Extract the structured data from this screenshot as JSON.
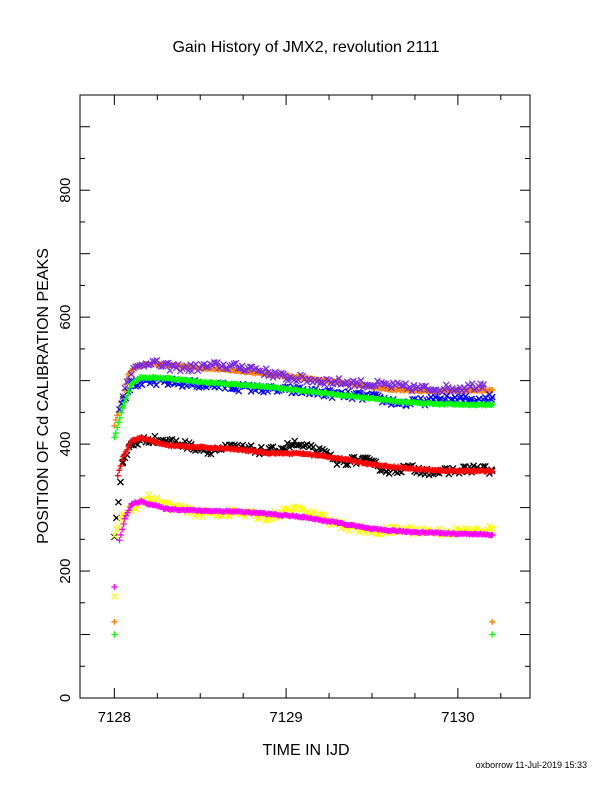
{
  "chart_data": {
    "type": "scatter",
    "title": "Gain History of JMX2, revolution 2111",
    "xlabel": "TIME IN IJD",
    "ylabel": "POSITION OF Cd CALIBRATION PEAKS",
    "xlim": [
      7127.8,
      7130.42
    ],
    "ylim": [
      0,
      950
    ],
    "x_ticks": [
      7128,
      7129,
      7130
    ],
    "y_ticks": [
      0,
      200,
      400,
      600,
      800
    ],
    "x_tick_labels": [
      "7128",
      "7129",
      "7130"
    ],
    "y_tick_labels": [
      "0",
      "200",
      "400",
      "600",
      "800"
    ],
    "grid": false,
    "footer": "oxborrow 11-Jul-2019 15:33",
    "series": [
      {
        "color": "#ff8000",
        "marker": "plus",
        "points": [
          [
            7128.0,
            430
          ],
          [
            7128.0,
            120
          ],
          [
            7130.2,
            120
          ],
          [
            7128.05,
            475
          ],
          [
            7128.08,
            510
          ],
          [
            7128.12,
            522
          ],
          [
            7128.2,
            526
          ],
          [
            7128.35,
            524
          ],
          [
            7128.5,
            520
          ],
          [
            7128.7,
            516
          ],
          [
            7128.9,
            510
          ],
          [
            7129.1,
            504
          ],
          [
            7129.3,
            498
          ],
          [
            7129.5,
            490
          ],
          [
            7129.6,
            486
          ],
          [
            7129.8,
            484
          ],
          [
            7130.0,
            484
          ],
          [
            7130.2,
            485
          ]
        ]
      },
      {
        "color": "#7a2be0",
        "marker": "cross",
        "points": [
          [
            7128.05,
            480
          ],
          [
            7128.1,
            515
          ],
          [
            7128.2,
            530
          ],
          [
            7128.3,
            522
          ],
          [
            7128.45,
            520
          ],
          [
            7128.6,
            524
          ],
          [
            7128.8,
            520
          ],
          [
            7128.9,
            512
          ],
          [
            7129.0,
            505
          ],
          [
            7129.2,
            500
          ],
          [
            7129.4,
            496
          ],
          [
            7129.6,
            492
          ],
          [
            7129.8,
            487
          ],
          [
            7130.0,
            488
          ],
          [
            7130.15,
            494
          ]
        ]
      },
      {
        "color": "#0000ff",
        "marker": "cross",
        "points": [
          [
            7128.03,
            460
          ],
          [
            7128.1,
            495
          ],
          [
            7128.3,
            498
          ],
          [
            7128.5,
            494
          ],
          [
            7128.7,
            490
          ],
          [
            7128.9,
            486
          ],
          [
            7129.1,
            484
          ],
          [
            7129.3,
            478
          ],
          [
            7129.5,
            474
          ],
          [
            7129.6,
            468
          ],
          [
            7129.7,
            464
          ],
          [
            7129.9,
            470
          ],
          [
            7130.1,
            470
          ],
          [
            7130.2,
            474
          ]
        ]
      },
      {
        "color": "#00ff00",
        "marker": "plus",
        "points": [
          [
            7128.0,
            410
          ],
          [
            7128.0,
            100
          ],
          [
            7130.2,
            100
          ],
          [
            7128.05,
            460
          ],
          [
            7128.1,
            496
          ],
          [
            7128.15,
            505
          ],
          [
            7128.3,
            504
          ],
          [
            7128.5,
            498
          ],
          [
            7128.7,
            494
          ],
          [
            7128.9,
            490
          ],
          [
            7129.1,
            484
          ],
          [
            7129.3,
            478
          ],
          [
            7129.5,
            472
          ],
          [
            7129.7,
            466
          ],
          [
            7129.9,
            463
          ],
          [
            7130.1,
            462
          ],
          [
            7130.2,
            462
          ]
        ]
      },
      {
        "color": "#000000",
        "marker": "cross",
        "points": [
          [
            7128.0,
            275
          ],
          [
            7128.0,
            258
          ],
          [
            7128.05,
            370
          ],
          [
            7128.1,
            400
          ],
          [
            7128.2,
            408
          ],
          [
            7128.3,
            405
          ],
          [
            7128.4,
            400
          ],
          [
            7128.55,
            390
          ],
          [
            7128.7,
            395
          ],
          [
            7128.9,
            388
          ],
          [
            7129.05,
            400
          ],
          [
            7129.2,
            388
          ],
          [
            7129.3,
            372
          ],
          [
            7129.45,
            375
          ],
          [
            7129.6,
            358
          ],
          [
            7129.7,
            362
          ],
          [
            7129.9,
            355
          ],
          [
            7130.1,
            362
          ],
          [
            7130.2,
            358
          ]
        ]
      },
      {
        "color": "#ff0000",
        "marker": "plus",
        "points": [
          [
            7128.02,
            350
          ],
          [
            7128.05,
            380
          ],
          [
            7128.1,
            405
          ],
          [
            7128.15,
            410
          ],
          [
            7128.3,
            398
          ],
          [
            7128.5,
            395
          ],
          [
            7128.7,
            392
          ],
          [
            7128.9,
            386
          ],
          [
            7129.1,
            385
          ],
          [
            7129.3,
            378
          ],
          [
            7129.5,
            368
          ],
          [
            7129.7,
            362
          ],
          [
            7129.9,
            358
          ],
          [
            7130.1,
            358
          ],
          [
            7130.2,
            357
          ]
        ]
      },
      {
        "color": "#ffff00",
        "marker": "cross",
        "points": [
          [
            7128.0,
            260
          ],
          [
            7128.0,
            160
          ],
          [
            7128.05,
            285
          ],
          [
            7128.1,
            300
          ],
          [
            7128.2,
            315
          ],
          [
            7128.35,
            300
          ],
          [
            7128.5,
            290
          ],
          [
            7128.7,
            292
          ],
          [
            7128.9,
            285
          ],
          [
            7129.05,
            298
          ],
          [
            7129.2,
            285
          ],
          [
            7129.35,
            270
          ],
          [
            7129.5,
            262
          ],
          [
            7129.7,
            265
          ],
          [
            7129.9,
            262
          ],
          [
            7130.1,
            263
          ],
          [
            7130.2,
            266
          ]
        ]
      },
      {
        "color": "#ff00ff",
        "marker": "plus",
        "points": [
          [
            7128.0,
            175
          ],
          [
            7128.03,
            248
          ],
          [
            7128.06,
            282
          ],
          [
            7128.1,
            305
          ],
          [
            7128.15,
            310
          ],
          [
            7128.3,
            298
          ],
          [
            7128.5,
            295
          ],
          [
            7128.7,
            294
          ],
          [
            7128.9,
            290
          ],
          [
            7129.1,
            285
          ],
          [
            7129.3,
            276
          ],
          [
            7129.5,
            266
          ],
          [
            7129.7,
            262
          ],
          [
            7129.9,
            260
          ],
          [
            7130.1,
            258
          ],
          [
            7130.2,
            257
          ]
        ]
      }
    ]
  }
}
